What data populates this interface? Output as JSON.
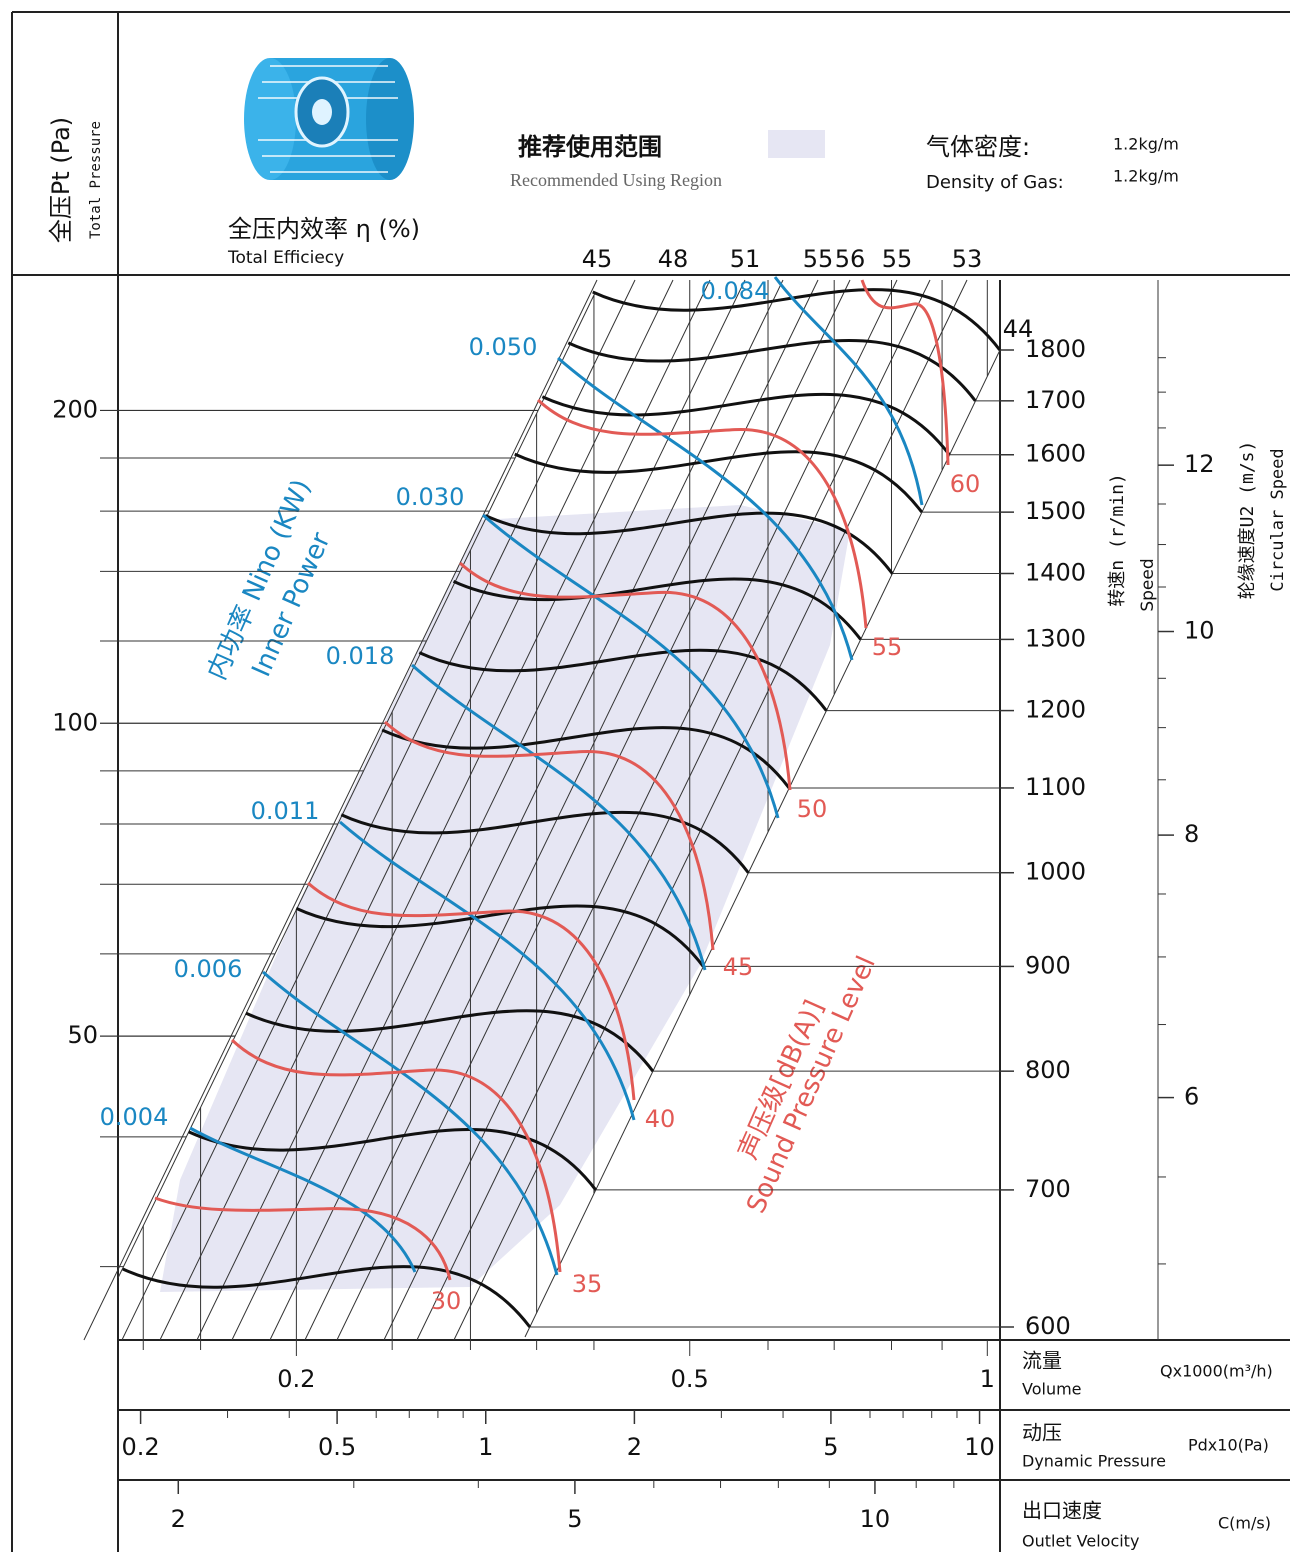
{
  "chart_data": {
    "type": "nomogram",
    "header": {
      "region_zh": "推荐使用范围",
      "region_en": "Recommended Using Region",
      "region_color": "#e6e6f3",
      "density_zh": "气体密度:",
      "density_en": "Density of Gas:",
      "density_values": [
        "1.2kg/m",
        "1.2kg/m"
      ]
    },
    "pressure_axis": {
      "label_zh": "全压Pt (Pa)",
      "label_en": "Total Pressure",
      "scale": "log",
      "ylim": [
        25.5,
        270
      ],
      "yticks": [
        50,
        100,
        200
      ],
      "minor_ticks": [
        30,
        40,
        60,
        70,
        80,
        90,
        120,
        140,
        160,
        180
      ]
    },
    "efficiency": {
      "label_zh": "全压内效率 η (%)",
      "label_en": "Total Efficiecy",
      "values": [
        45,
        48,
        51,
        55,
        56,
        55,
        53,
        44
      ]
    },
    "power": {
      "label_zh": "内功率 Nino (KW)",
      "label_en": "Inner Power",
      "color": "#1a87c2",
      "values": [
        0.004,
        0.006,
        0.011,
        0.018,
        0.03,
        0.05,
        0.084
      ],
      "value_labels": [
        "0.004",
        "0.006",
        "0.011",
        "0.018",
        "0.030",
        "0.050",
        "0.084"
      ]
    },
    "sound": {
      "label_zh": "声压级[dB(A)]",
      "label_en": "Sound Pressure Level",
      "color": "#e25a55",
      "values": [
        30,
        35,
        40,
        45,
        50,
        55,
        60
      ]
    },
    "speed_axis": {
      "label_zh": "转速n (r/min)",
      "label_en": "Speed",
      "scale": "log",
      "color": "#111111",
      "ylim": [
        600,
        1800
      ],
      "yticks": [
        600,
        700,
        800,
        900,
        1000,
        1100,
        1200,
        1300,
        1400,
        1500,
        1600,
        1700,
        1800
      ]
    },
    "circular_speed_axis": {
      "label_zh": "轮缘速度U2 (m/s)",
      "label_en": "Circular Speed",
      "scale": "log",
      "ylim": [
        4.6,
        14.7
      ],
      "yticks": [
        6,
        8,
        10,
        12
      ],
      "minor_ticks": [
        5,
        5.5,
        6.5,
        7,
        7.5,
        8.5,
        9,
        9.5,
        10.5,
        11,
        11.5,
        12.5,
        13,
        13.5
      ]
    },
    "volume_axis": {
      "label_zh": "流量",
      "label_en": "Volume",
      "unit": "Qx1000(m³/h)",
      "scale": "log",
      "xlim": [
        0.132,
        1.03
      ],
      "xticks": [
        0.2,
        0.5,
        1
      ],
      "minor_ticks": [
        0.14,
        0.16,
        0.25,
        0.3,
        0.35,
        0.4,
        0.6,
        0.7,
        0.8,
        0.9
      ]
    },
    "dynamic_pressure_axis": {
      "label_zh": "动压",
      "label_en": "Dynamic Pressure",
      "unit": "Pdx10(Pa)",
      "scale": "log",
      "xlim": [
        0.18,
        11
      ],
      "xticks": [
        0.2,
        0.5,
        1,
        2,
        5,
        10
      ],
      "minor_ticks": [
        0.3,
        0.4,
        0.6,
        0.7,
        0.8,
        0.9,
        3,
        4,
        6,
        7,
        8,
        9
      ]
    },
    "outlet_velocity_axis": {
      "label_zh": "出口速度",
      "label_en": "Outlet Velocity",
      "unit": "C(m/s)",
      "scale": "log",
      "xlim": [
        1.74,
        13.35
      ],
      "xticks": [
        2,
        5,
        10
      ],
      "minor_ticks": [
        3,
        4,
        6,
        7,
        8,
        9,
        11,
        12
      ]
    }
  }
}
